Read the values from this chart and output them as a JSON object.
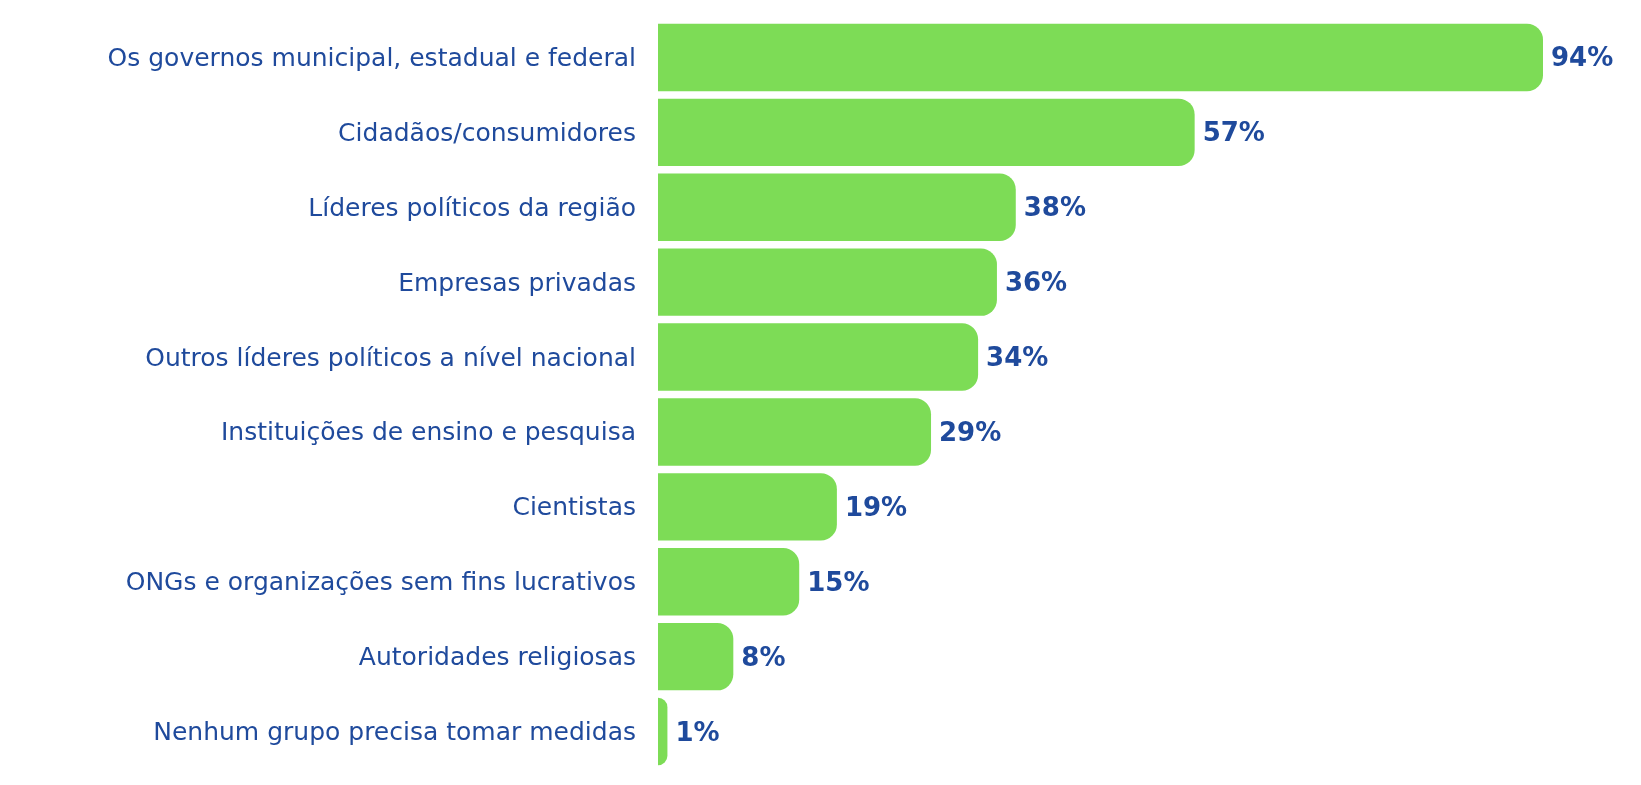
{
  "chart_data": {
    "type": "bar",
    "orientation": "horizontal",
    "categories": [
      "Os governos municipal, estadual e federal",
      "Cidadãos/consumidores",
      "Líderes políticos da região",
      "Empresas privadas",
      "Outros líderes políticos a nível nacional",
      "Instituições de ensino e pesquisa",
      "Cientistas",
      "ONGs e organizações sem fins lucrativos",
      "Autoridades religiosas",
      "Nenhum grupo precisa tomar medidas"
    ],
    "values": [
      94,
      57,
      38,
      36,
      34,
      29,
      19,
      15,
      8,
      1
    ],
    "value_labels": [
      "94%",
      "57%",
      "38%",
      "36%",
      "34%",
      "29%",
      "19%",
      "15%",
      "8%",
      "1%"
    ],
    "color": "#7ddc56"
  }
}
